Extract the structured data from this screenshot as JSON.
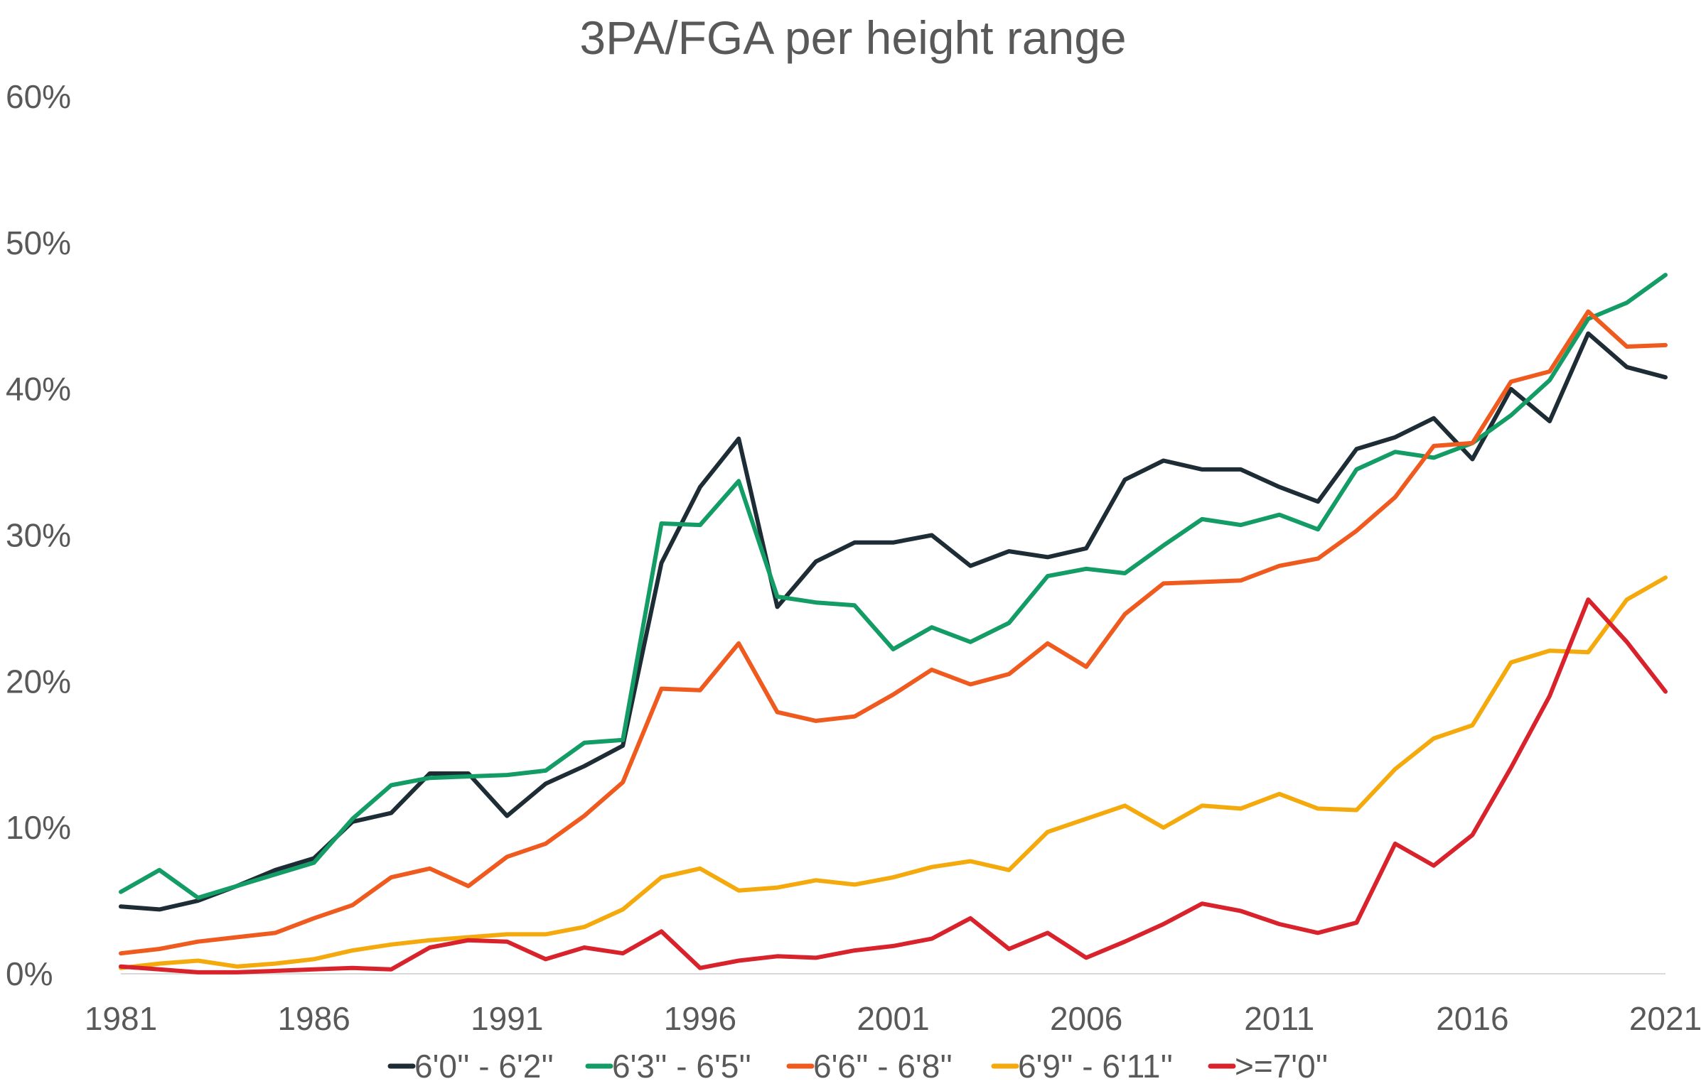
{
  "chart_data": {
    "type": "line",
    "title": "3PA/FGA per height range",
    "xlabel": "",
    "ylabel": "",
    "xlim": [
      1981,
      2021
    ],
    "ylim": [
      0,
      60
    ],
    "x_ticks": [
      "1981",
      "1986",
      "1991",
      "1996",
      "2001",
      "2006",
      "2011",
      "2016",
      "2021"
    ],
    "x_tick_values": [
      1981,
      1986,
      1991,
      1996,
      2001,
      2006,
      2011,
      2016,
      2021
    ],
    "y_ticks": [
      "0%",
      "10%",
      "20%",
      "30%",
      "40%",
      "50%",
      "60%"
    ],
    "y_tick_values": [
      0,
      10,
      20,
      30,
      40,
      50,
      60
    ],
    "grid": false,
    "legend_position": "bottom",
    "x": [
      1981,
      1982,
      1983,
      1984,
      1985,
      1986,
      1987,
      1988,
      1989,
      1990,
      1991,
      1992,
      1993,
      1994,
      1995,
      1996,
      1997,
      1998,
      1999,
      2000,
      2001,
      2002,
      2003,
      2004,
      2005,
      2006,
      2007,
      2008,
      2009,
      2010,
      2011,
      2012,
      2013,
      2014,
      2015,
      2016,
      2017,
      2018,
      2019,
      2020,
      2021
    ],
    "series": [
      {
        "name": "6'0'' - 6'2''",
        "color": "#1e2d35",
        "values": [
          4.6,
          4.4,
          5.0,
          6.0,
          7.1,
          7.9,
          10.4,
          11.0,
          13.7,
          13.7,
          10.8,
          13.0,
          14.2,
          15.6,
          28.1,
          33.3,
          36.6,
          25.1,
          28.2,
          29.5,
          29.5,
          30.0,
          27.9,
          28.9,
          28.5,
          29.1,
          33.8,
          35.1,
          34.5,
          34.5,
          33.3,
          32.3,
          35.9,
          36.7,
          38.0,
          35.2,
          40.0,
          37.8,
          43.8,
          41.5,
          40.8
        ]
      },
      {
        "name": "6'3'' - 6'5''",
        "color": "#139c65",
        "values": [
          5.6,
          7.1,
          5.2,
          6.0,
          6.8,
          7.6,
          10.6,
          12.9,
          13.4,
          13.5,
          13.6,
          13.9,
          15.8,
          16.0,
          30.8,
          30.7,
          33.7,
          25.8,
          25.4,
          25.2,
          22.2,
          23.7,
          22.7,
          24.0,
          27.2,
          27.7,
          27.4,
          29.3,
          31.1,
          30.7,
          31.4,
          30.4,
          34.5,
          35.7,
          35.3,
          36.3,
          38.2,
          40.6,
          44.8,
          45.9,
          47.8
        ]
      },
      {
        "name": "6'6'' - 6'8''",
        "color": "#ef5a1f",
        "values": [
          1.4,
          1.7,
          2.2,
          2.5,
          2.8,
          3.8,
          4.7,
          6.6,
          7.2,
          6.0,
          8.0,
          8.9,
          10.8,
          13.1,
          19.5,
          19.4,
          22.6,
          17.9,
          17.3,
          17.6,
          19.1,
          20.8,
          19.8,
          20.5,
          22.6,
          21.0,
          24.6,
          26.7,
          26.8,
          26.9,
          27.9,
          28.4,
          30.3,
          32.6,
          36.1,
          36.3,
          40.5,
          41.2,
          45.3,
          42.9,
          43.0
        ]
      },
      {
        "name": "6'9'' - 6'11''",
        "color": "#f4aa0c",
        "values": [
          0.4,
          0.7,
          0.9,
          0.5,
          0.7,
          1.0,
          1.6,
          2.0,
          2.3,
          2.5,
          2.7,
          2.7,
          3.2,
          4.4,
          6.6,
          7.2,
          5.7,
          5.9,
          6.4,
          6.1,
          6.6,
          7.3,
          7.7,
          7.1,
          9.7,
          10.6,
          11.5,
          10.0,
          11.5,
          11.3,
          12.3,
          11.3,
          11.2,
          14.0,
          16.1,
          17.0,
          21.3,
          22.1,
          22.0,
          25.6,
          27.1
        ]
      },
      {
        "name": ">=7'0''",
        "color": "#d9232c",
        "values": [
          0.5,
          0.3,
          0.1,
          0.1,
          0.2,
          0.3,
          0.4,
          0.3,
          1.8,
          2.3,
          2.2,
          1.0,
          1.8,
          1.4,
          2.9,
          0.4,
          0.9,
          1.2,
          1.1,
          1.6,
          1.9,
          2.4,
          3.8,
          1.7,
          2.8,
          1.1,
          2.2,
          3.4,
          4.8,
          4.3,
          3.4,
          2.8,
          3.5,
          8.9,
          7.4,
          9.5,
          14.1,
          19.0,
          25.6,
          22.7,
          19.3
        ]
      }
    ]
  }
}
